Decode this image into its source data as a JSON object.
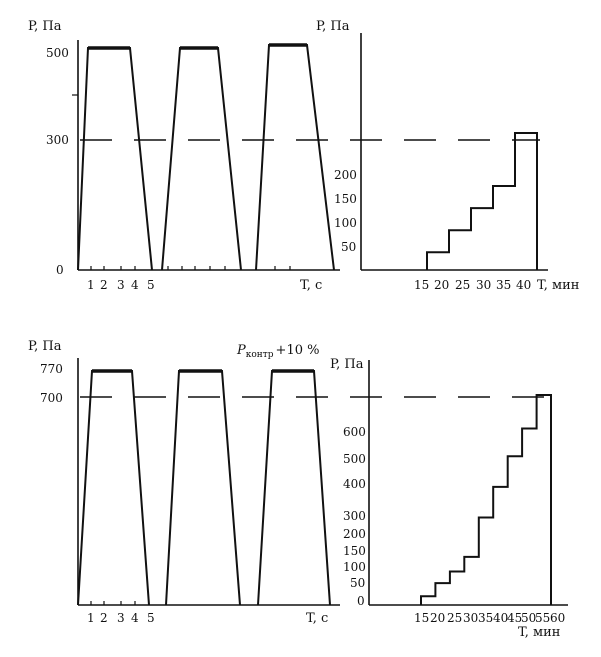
{
  "chart_data": [
    {
      "type": "line",
      "panel": "top-left",
      "ylabel": "P, Па",
      "xlabel": "T, с",
      "x_ticks": [
        "1",
        "2",
        "3",
        "4",
        "5"
      ],
      "y_ticks": [
        "500",
        "300",
        "0"
      ],
      "ylim": [
        0,
        500
      ],
      "reference_level": 300,
      "cycles": [
        {
          "rise_start": [
            0,
            0
          ],
          "plateau": [
            [
              0.3,
              500
            ],
            [
              1.8,
              500
            ]
          ],
          "fall_end": [
            2.6,
            0
          ]
        },
        {
          "rise_start": [
            2.9,
            0
          ],
          "plateau": [
            [
              3.6,
              500
            ],
            [
              4.9,
              500
            ]
          ],
          "fall_end": [
            5.6,
            0
          ]
        },
        {
          "rise_start": [
            5.9,
            0
          ],
          "plateau": [
            [
              6.6,
              505
            ],
            [
              8.0,
              505
            ]
          ],
          "fall_end": [
            8.6,
            0
          ]
        }
      ]
    },
    {
      "type": "line",
      "panel": "top-right",
      "ylabel": "P, Па",
      "xlabel": "T, мин",
      "x_ticks": [
        "15",
        "20",
        "25",
        "30",
        "35",
        "40"
      ],
      "y_ticks": [
        "200",
        "150",
        "100",
        "50"
      ],
      "ylim": [
        0,
        300
      ],
      "reference_level": 300,
      "steps": [
        {
          "x": 15,
          "y": 0
        },
        {
          "x": 15,
          "y": 40
        },
        {
          "x": 20,
          "y": 40
        },
        {
          "x": 20,
          "y": 90
        },
        {
          "x": 25,
          "y": 90
        },
        {
          "x": 25,
          "y": 140
        },
        {
          "x": 30,
          "y": 140
        },
        {
          "x": 30,
          "y": 190
        },
        {
          "x": 35,
          "y": 190
        },
        {
          "x": 35,
          "y": 310
        },
        {
          "x": 40,
          "y": 310
        },
        {
          "x": 40,
          "y": 0
        }
      ]
    },
    {
      "type": "line",
      "panel": "bottom-left",
      "ylabel": "P, Па",
      "xlabel": "T, с",
      "annotation_main": "P",
      "annotation_sub": "контр",
      "annotation_tail": "+10 %",
      "x_ticks": [
        "1",
        "2",
        "3",
        "4",
        "5"
      ],
      "y_ticks": [
        "770",
        "700"
      ],
      "ylim": [
        0,
        770
      ],
      "reference_level": 700,
      "cycles": [
        {
          "rise_start": [
            0,
            0
          ],
          "plateau": [
            [
              0.3,
              770
            ],
            [
              1.8,
              770
            ]
          ],
          "fall_end": [
            2.6,
            0
          ]
        },
        {
          "rise_start": [
            2.9,
            0
          ],
          "plateau": [
            [
              3.6,
              770
            ],
            [
              4.9,
              770
            ]
          ],
          "fall_end": [
            5.6,
            0
          ]
        },
        {
          "rise_start": [
            5.9,
            0
          ],
          "plateau": [
            [
              6.6,
              770
            ],
            [
              8.0,
              770
            ]
          ],
          "fall_end": [
            8.6,
            0
          ]
        }
      ]
    },
    {
      "type": "line",
      "panel": "bottom-right",
      "ylabel": "P, Па",
      "xlabel": "T, мин",
      "x_ticks": [
        "15",
        "20",
        "25",
        "30",
        "35",
        "40",
        "45",
        "50",
        "55",
        "60"
      ],
      "y_ticks": [
        "600",
        "500",
        "400",
        "300",
        "200",
        "150",
        "100",
        "50",
        "0"
      ],
      "ylim": [
        0,
        700
      ],
      "reference_level": 700,
      "steps": [
        {
          "x": 15,
          "y": 0
        },
        {
          "x": 15,
          "y": 30
        },
        {
          "x": 20,
          "y": 30
        },
        {
          "x": 20,
          "y": 75
        },
        {
          "x": 25,
          "y": 75
        },
        {
          "x": 25,
          "y": 115
        },
        {
          "x": 30,
          "y": 115
        },
        {
          "x": 30,
          "y": 165
        },
        {
          "x": 35,
          "y": 165
        },
        {
          "x": 35,
          "y": 300
        },
        {
          "x": 40,
          "y": 300
        },
        {
          "x": 40,
          "y": 405
        },
        {
          "x": 45,
          "y": 405
        },
        {
          "x": 45,
          "y": 510
        },
        {
          "x": 50,
          "y": 510
        },
        {
          "x": 50,
          "y": 605
        },
        {
          "x": 55,
          "y": 605
        },
        {
          "x": 55,
          "y": 720
        },
        {
          "x": 60,
          "y": 720
        },
        {
          "x": 60,
          "y": 0
        }
      ]
    }
  ]
}
